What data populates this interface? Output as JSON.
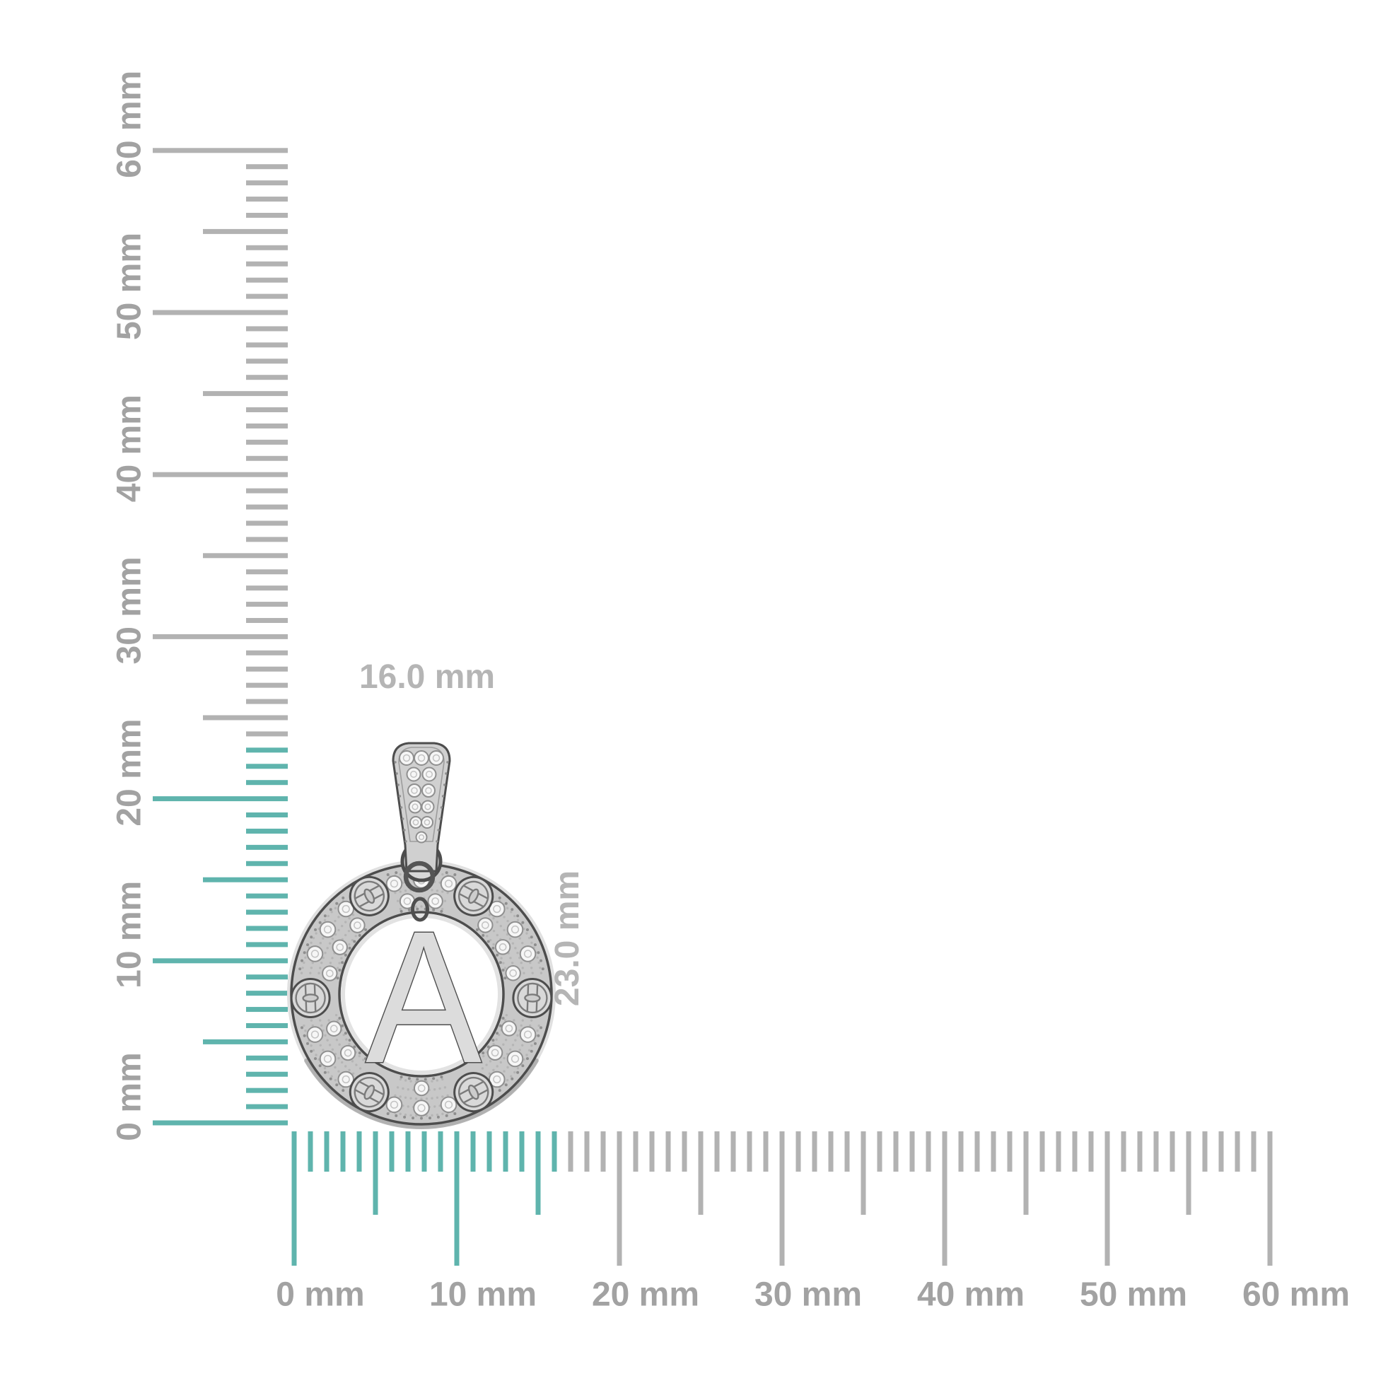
{
  "image": {
    "background": "#FFFFFF",
    "description": "Silver pave initial-letter pendant shown against vertical and horizontal millimeter rulers"
  },
  "colors": {
    "highlight_teal": "#5FB4AD",
    "tick_gray": "#B2B2B2",
    "ruler_label_gray": "#A2A2A2",
    "dimension_label_gray": "#B5B5B5",
    "outline_dark": "#4D4D4D",
    "metal_light": "#D9D9D9",
    "metal_band": "#C8C8C8",
    "stone_white": "#F6F6F6"
  },
  "pendant": {
    "letter": "A",
    "width_label": "16.0 mm",
    "height_label": "23.0 mm",
    "width_mm": 16.0,
    "height_mm": 23.0
  },
  "rulers": {
    "unit": "mm",
    "vertical": {
      "min": 0,
      "max": 60,
      "minor_step": 1,
      "medium_step": 5,
      "major_step": 10,
      "highlight_from": 0,
      "highlight_to": 23,
      "labels": [
        "0 mm",
        "10 mm",
        "20 mm",
        "30 mm",
        "40 mm",
        "50 mm",
        "60 mm"
      ]
    },
    "horizontal": {
      "min": 0,
      "max": 60,
      "minor_step": 1,
      "medium_step": 5,
      "major_step": 10,
      "highlight_from": 0,
      "highlight_to": 16,
      "labels": [
        "0 mm",
        "10 mm",
        "20 mm",
        "30 mm",
        "40 mm",
        "50 mm",
        "60 mm"
      ]
    }
  }
}
